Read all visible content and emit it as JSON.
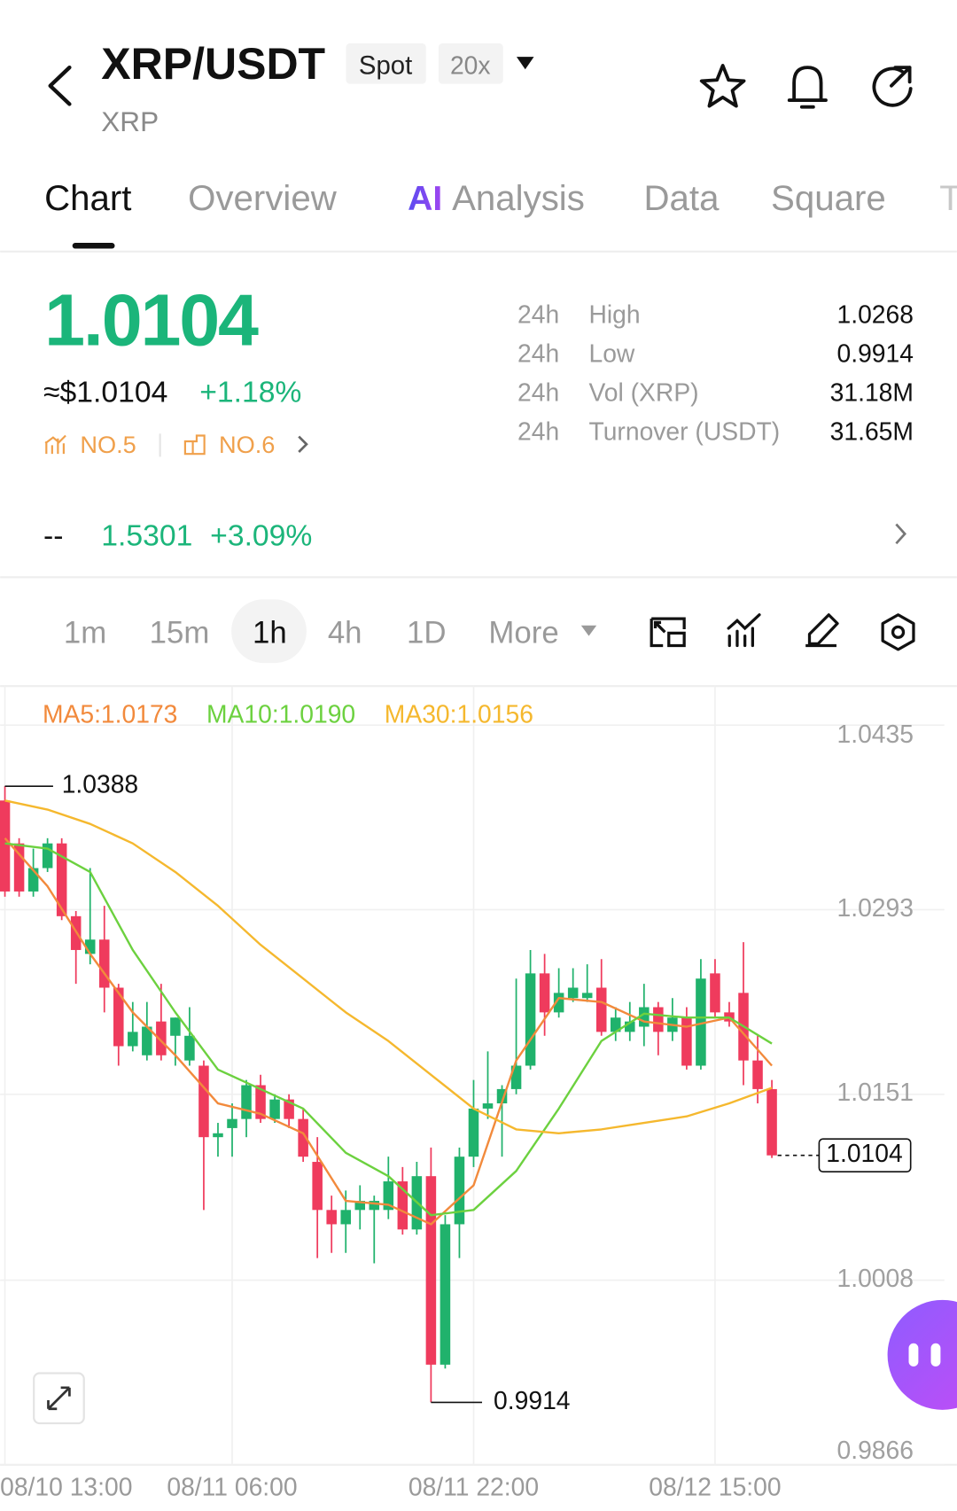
{
  "header": {
    "pair": "XRP/USDT",
    "badges": [
      "Spot",
      "20x"
    ],
    "base": "XRP"
  },
  "tabs": {
    "items": [
      "Chart",
      "Overview",
      "Analysis",
      "Data",
      "Square",
      "T"
    ],
    "ai_mark": "AI"
  },
  "price": {
    "last": "1.0104",
    "usd": "≈$1.0104",
    "change": "+1.18%",
    "ranks": [
      "NO.5",
      "NO.6"
    ]
  },
  "stats": [
    [
      "24h",
      "High",
      "1.0268"
    ],
    [
      "24h",
      "Low",
      "0.9914"
    ],
    [
      "24h",
      "Vol (XRP)",
      "31.18M"
    ],
    [
      "24h",
      "Turnover (USDT)",
      "31.65M"
    ]
  ],
  "related": {
    "name": "--",
    "price": "1.5301",
    "change": "+3.09%"
  },
  "intervals": {
    "items": [
      "1m",
      "15m",
      "1h",
      "4h",
      "1D",
      "More"
    ]
  },
  "chart_data": {
    "type": "candlestick",
    "categories": [
      "08/10 13:00",
      null,
      null,
      null,
      null,
      null,
      null,
      null,
      null,
      null,
      null,
      null,
      null,
      null,
      null,
      null,
      "08/11 06:00",
      null,
      null,
      null,
      null,
      null,
      null,
      null,
      null,
      null,
      null,
      null,
      null,
      null,
      null,
      null,
      null,
      "08/11 22:00",
      null,
      null,
      null,
      null,
      null,
      null,
      null,
      null,
      null,
      null,
      null,
      null,
      null,
      null,
      null,
      null,
      "08/12 15:00",
      null,
      null,
      null,
      null
    ],
    "open": [
      1.0377,
      1.0344,
      1.0307,
      1.0325,
      1.0344,
      1.0288,
      1.0259,
      1.027,
      1.0233,
      1.0188,
      1.0181,
      1.0207,
      1.0196,
      1.0177,
      1.0173,
      1.0118,
      1.0125,
      1.0132,
      1.0158,
      1.0132,
      1.0147,
      1.0132,
      1.0099,
      1.0062,
      1.0051,
      1.0062,
      1.0062,
      1.0062,
      1.0084,
      1.0047,
      1.0088,
      0.9943,
      1.0051,
      1.0103,
      1.014,
      1.0144,
      1.0155,
      1.0173,
      1.0244,
      1.0214,
      1.0225,
      1.0225,
      1.0233,
      1.0199,
      1.0199,
      1.0203,
      1.0218,
      1.0199,
      1.021,
      1.0173,
      1.0244,
      1.0214,
      1.0229,
      1.0177,
      1.0155
    ],
    "high": [
      1.0388,
      1.0348,
      1.034,
      1.0348,
      1.0348,
      1.0292,
      1.0325,
      1.0296,
      1.0236,
      1.0222,
      1.0222,
      1.0236,
      1.021,
      1.0218,
      1.0177,
      1.0129,
      1.0144,
      1.0162,
      1.0166,
      1.0151,
      1.0151,
      1.014,
      1.0118,
      1.0073,
      1.0077,
      1.0081,
      1.0073,
      1.0103,
      1.0095,
      1.0099,
      1.011,
      1.0058,
      1.011,
      1.0162,
      1.0184,
      1.0158,
      1.024,
      1.0262,
      1.0259,
      1.0248,
      1.0248,
      1.0251,
      1.0255,
      1.0218,
      1.0222,
      1.0236,
      1.0222,
      1.0225,
      1.0218,
      1.0255,
      1.0255,
      1.0222,
      1.0268,
      1.0196,
      1.0162
    ],
    "low": [
      1.0303,
      1.0303,
      1.0303,
      1.0322,
      1.0285,
      1.0236,
      1.0251,
      1.0214,
      1.0173,
      1.0184,
      1.0177,
      1.0177,
      1.0173,
      1.0173,
      1.0062,
      1.0103,
      1.0103,
      1.0118,
      1.0129,
      1.0129,
      1.0125,
      1.0099,
      1.0025,
      1.0029,
      1.0029,
      1.0047,
      1.0021,
      1.0055,
      1.0043,
      1.0043,
      0.9914,
      0.994,
      1.0025,
      1.0095,
      1.0132,
      1.0103,
      1.0151,
      1.017,
      1.0196,
      1.021,
      1.0222,
      1.0222,
      1.0196,
      1.0192,
      1.0192,
      1.0188,
      1.0181,
      1.0192,
      1.017,
      1.017,
      1.021,
      1.0203,
      1.0158,
      1.0144,
      1.0102
    ],
    "close": [
      1.0307,
      1.0307,
      1.0325,
      1.0344,
      1.0288,
      1.0262,
      1.027,
      1.0233,
      1.0188,
      1.0199,
      1.0203,
      1.0181,
      1.021,
      1.0196,
      1.0118,
      1.0121,
      1.0132,
      1.0158,
      1.0132,
      1.0147,
      1.0132,
      1.0103,
      1.0062,
      1.0051,
      1.0062,
      1.0069,
      1.0069,
      1.0084,
      1.0047,
      1.0088,
      0.9943,
      1.0051,
      1.0103,
      1.014,
      1.0144,
      1.0155,
      1.0173,
      1.0244,
      1.0214,
      1.0229,
      1.0233,
      1.0229,
      1.0199,
      1.021,
      1.0207,
      1.0218,
      1.0199,
      1.021,
      1.0173,
      1.024,
      1.0214,
      1.0207,
      1.0177,
      1.0155,
      1.0104
    ],
    "up_color": "#20b26c",
    "down_color": "#ef3b5d",
    "ma_series": [
      {
        "name": "MA5:1.0173",
        "color": "#f28a3c",
        "x": [
          0,
          3,
          6,
          9,
          12,
          15,
          18,
          21,
          24,
          27,
          30,
          33,
          36,
          39,
          42,
          45,
          48,
          51,
          54
        ],
        "values": [
          1.0348,
          1.0311,
          1.0259,
          1.0214,
          1.0181,
          1.0144,
          1.0136,
          1.0121,
          1.0069,
          1.0066,
          1.0051,
          1.0081,
          1.0177,
          1.0225,
          1.0222,
          1.0207,
          1.0203,
          1.021,
          1.0173
        ]
      },
      {
        "name": "MA10:1.0190",
        "color": "#6cd13f",
        "x": [
          0,
          3,
          6,
          9,
          12,
          15,
          18,
          21,
          24,
          27,
          30,
          33,
          36,
          39,
          42,
          45,
          48,
          51,
          54
        ],
        "values": [
          1.0344,
          1.034,
          1.0322,
          1.0262,
          1.0214,
          1.017,
          1.0155,
          1.014,
          1.0106,
          1.0088,
          1.0058,
          1.0062,
          1.0092,
          1.014,
          1.0192,
          1.0213,
          1.021,
          1.021,
          1.019
        ]
      },
      {
        "name": "MA30:1.0156",
        "color": "#f5b82e",
        "x": [
          0,
          3,
          6,
          9,
          12,
          15,
          18,
          21,
          24,
          27,
          30,
          33,
          36,
          39,
          42,
          45,
          48,
          51,
          54
        ],
        "values": [
          1.0377,
          1.037,
          1.0359,
          1.0344,
          1.0322,
          1.0296,
          1.0266,
          1.024,
          1.0214,
          1.0192,
          1.0166,
          1.014,
          1.0124,
          1.0121,
          1.0124,
          1.0129,
          1.0134,
          1.0144,
          1.0156
        ]
      }
    ],
    "annotations": {
      "high": 1.0388,
      "low": 0.9914,
      "last": 1.0104
    },
    "ylim": [
      0.9866,
      1.0465
    ],
    "yticks": [
      1.0435,
      1.0293,
      1.0151,
      1.0008,
      0.9866
    ],
    "grid": true
  }
}
